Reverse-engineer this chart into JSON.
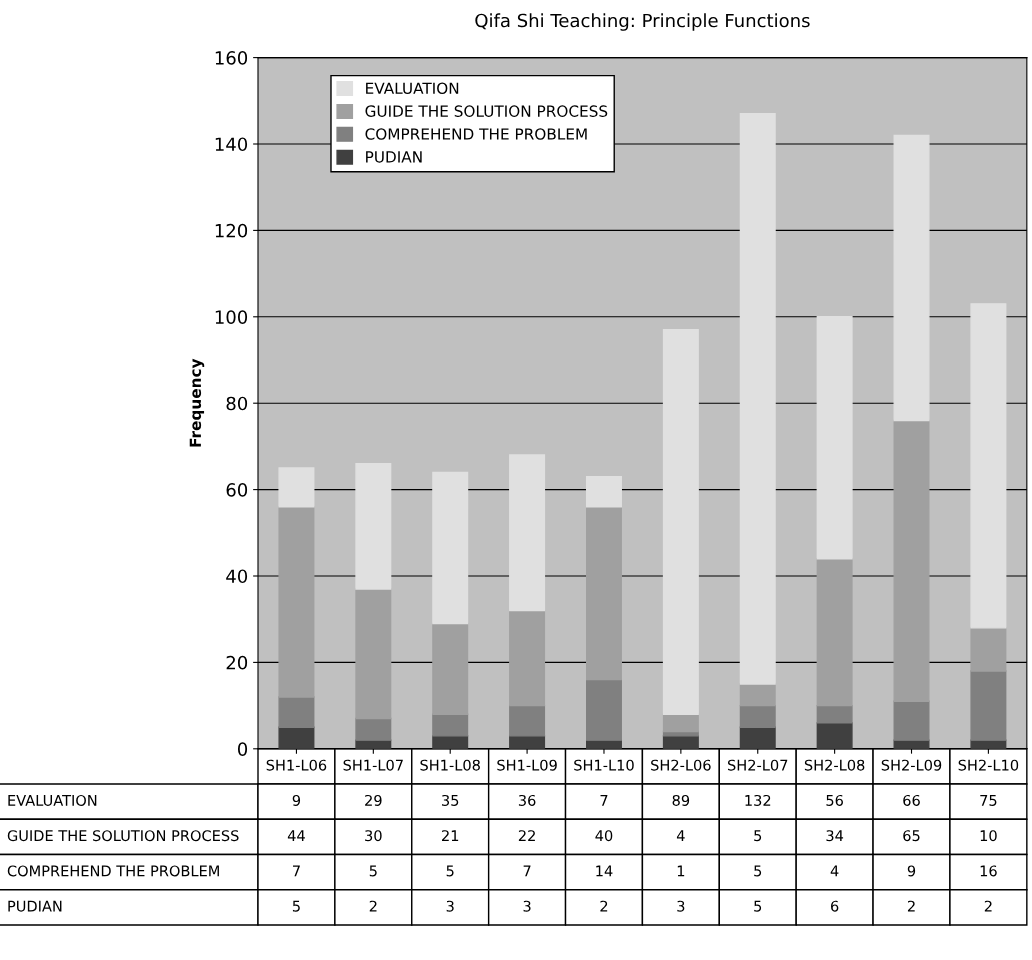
{
  "chart_data": {
    "type": "bar",
    "title": "Qifa Shi Teaching: Principle Functions",
    "ylabel": "Frequency",
    "categories": [
      "SH1-L06",
      "SH1-L07",
      "SH1-L08",
      "SH1-L09",
      "SH1-L10",
      "SH2-L06",
      "SH2-L07",
      "SH2-L08",
      "SH2-L09",
      "SH2-L10"
    ],
    "stacked": true,
    "series": [
      {
        "name": "PUDIAN",
        "color": "#404040",
        "values": [
          5,
          2,
          3,
          3,
          2,
          3,
          5,
          6,
          2,
          2
        ]
      },
      {
        "name": "COMPREHEND THE PROBLEM",
        "color": "#808080",
        "values": [
          7,
          5,
          5,
          7,
          14,
          1,
          5,
          4,
          9,
          16
        ]
      },
      {
        "name": "GUIDE THE SOLUTION PROCESS",
        "color": "#a0a0a0",
        "values": [
          44,
          30,
          21,
          22,
          40,
          4,
          5,
          34,
          65,
          10
        ]
      },
      {
        "name": "EVALUATION",
        "color": "#e0e0e0",
        "values": [
          9,
          29,
          35,
          36,
          7,
          89,
          132,
          56,
          66,
          75
        ]
      }
    ],
    "ylim": [
      0,
      160
    ],
    "yticks": [
      0,
      20,
      40,
      60,
      80,
      100,
      120,
      140,
      160
    ],
    "grid": "y",
    "legend": "top left",
    "data_labels": true
  }
}
